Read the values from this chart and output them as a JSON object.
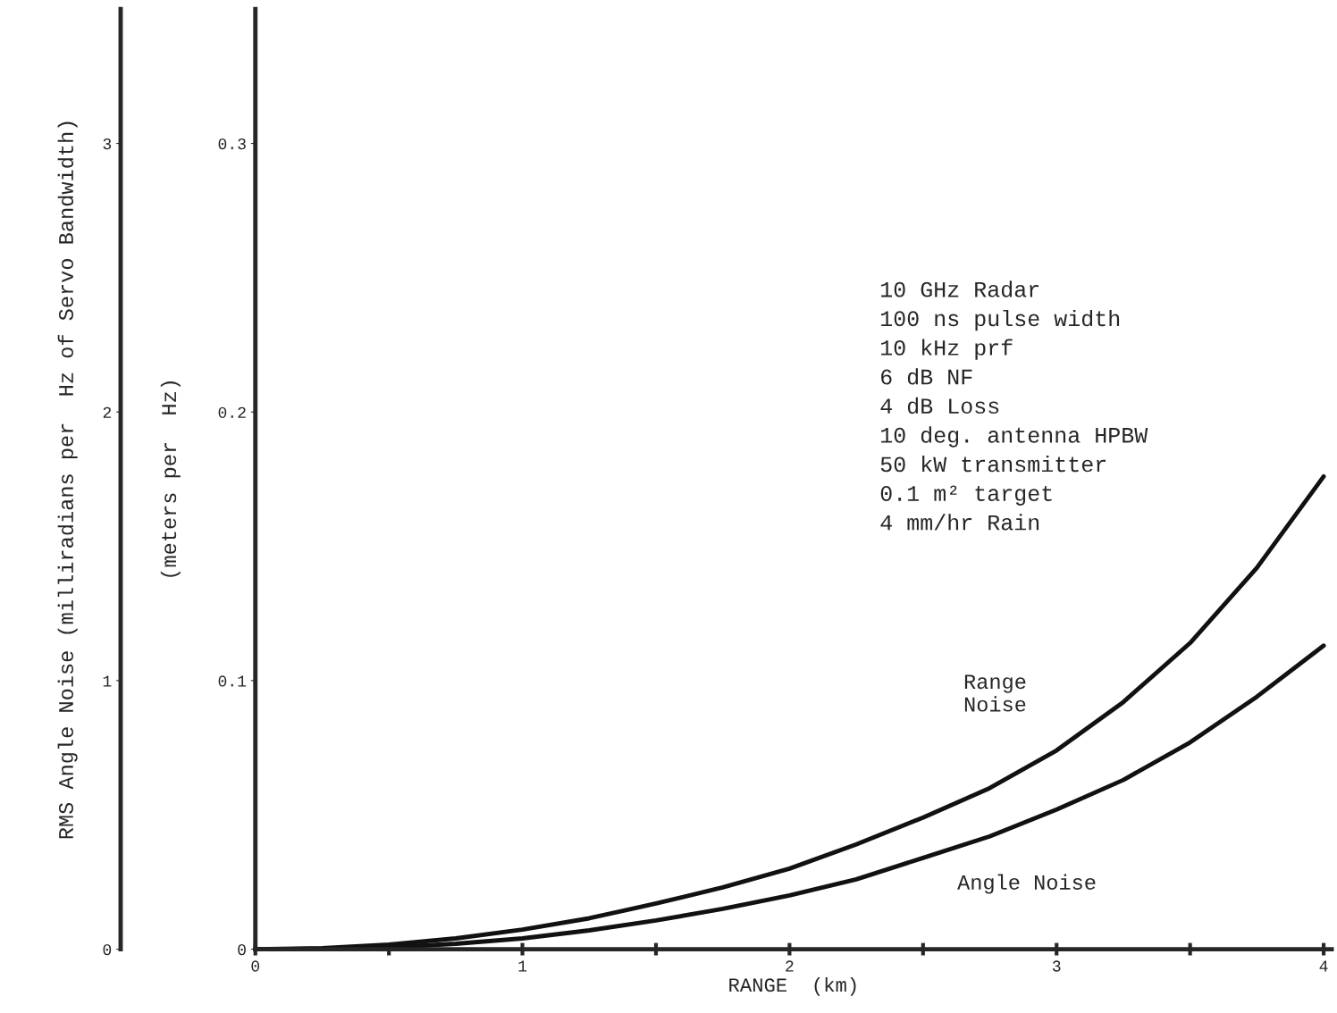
{
  "chart_data": {
    "type": "line",
    "xlabel": "RANGE  (km)",
    "ylabel": "(meters per  Hz)",
    "y2label": "RMS Angle Noise (milliradians per  Hz of Servo Bandwidth)",
    "x": [
      0,
      0.25,
      0.5,
      0.75,
      1,
      1.25,
      1.5,
      1.75,
      2,
      2.25,
      2.5,
      2.75,
      3,
      3.25,
      3.5,
      3.75,
      4
    ],
    "series": [
      {
        "name": "Range Noise",
        "color": "#111111",
        "values": [
          0,
          0.0004,
          0.0017,
          0.004,
          0.0073,
          0.0115,
          0.017,
          0.023,
          0.03,
          0.039,
          0.049,
          0.06,
          0.074,
          0.092,
          0.114,
          0.142,
          0.176
        ]
      },
      {
        "name": "Angle Noise",
        "color": "#111111",
        "axis": "y2",
        "values": [
          0,
          0.001,
          0.007,
          0.02,
          0.04,
          0.07,
          0.107,
          0.15,
          0.2,
          0.26,
          0.34,
          0.42,
          0.52,
          0.63,
          0.77,
          0.94,
          1.13
        ]
      }
    ],
    "xlim": [
      0,
      4.03
    ],
    "xticks": [
      0,
      {
        "value": 0.5,
        "label": null
      },
      1,
      {
        "value": 1.5,
        "label": null
      },
      2,
      {
        "value": 2.5,
        "label": null
      },
      3,
      {
        "value": 3.5,
        "label": null
      },
      4
    ],
    "ylim": [
      0,
      0.35
    ],
    "yticks": [
      0,
      0.1,
      0.2,
      0.3
    ],
    "y2lim": [
      0,
      3.5
    ],
    "y2ticks": [
      0,
      1,
      2,
      3
    ],
    "annotations": [
      "10 GHz Radar",
      "100 ns pulse width",
      "10 kHz prf",
      "6 dB NF",
      "4 dB Loss",
      "10 deg. antenna HPBW",
      "50 kW transmitter",
      "0.1 m² target",
      "4 mm/hr Rain"
    ],
    "grid": false,
    "marker": "none",
    "line_style": "solid"
  }
}
